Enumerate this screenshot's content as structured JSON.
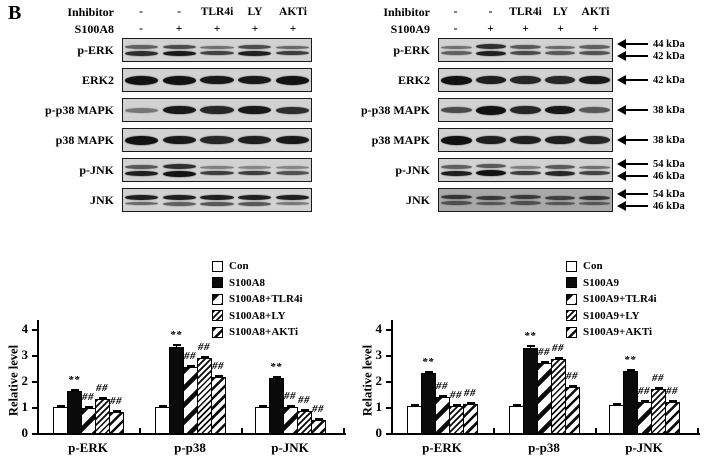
{
  "panel_label": "B",
  "colors": {
    "foreground": "#000000",
    "background": "#ffffff",
    "blot_membrane": "#d2d2d2",
    "blot_membrane_dark": "#a9a9a9"
  },
  "blot_panels": [
    {
      "id": "s100a8",
      "header_rows": [
        {
          "label": "Inhibitor",
          "values": [
            "-",
            "-",
            "TLR4i",
            "LY",
            "AKTi"
          ]
        },
        {
          "label": "S100A8",
          "values": [
            "-",
            "+",
            "+",
            "+",
            "+"
          ]
        }
      ],
      "rows": [
        {
          "label": "p-ERK",
          "band_rows": [
            [
              0.45,
              0.6,
              0.35,
              0.6,
              0.4
            ],
            [
              0.8,
              0.95,
              0.65,
              0.9,
              0.7
            ]
          ],
          "markers": []
        },
        {
          "label": "ERK2",
          "band_rows": [
            [
              1,
              1,
              0.95,
              0.95,
              1
            ]
          ],
          "markers": []
        },
        {
          "label": "p-p38 MAPK",
          "band_rows": [
            [
              0.3,
              0.95,
              0.85,
              0.95,
              0.8
            ]
          ],
          "markers": []
        },
        {
          "label": "p38 MAPK",
          "band_rows": [
            [
              1,
              0.95,
              0.85,
              0.9,
              0.95
            ]
          ],
          "markers": []
        },
        {
          "label": "p-JNK",
          "band_rows": [
            [
              0.5,
              0.8,
              0.25,
              0.2,
              0.2
            ],
            [
              0.9,
              1,
              0.7,
              0.7,
              0.55
            ]
          ],
          "markers": []
        },
        {
          "label": "JNK",
          "band_rows": [
            [
              0.9,
              0.9,
              0.9,
              0.9,
              0.9
            ],
            [
              0.4,
              0.45,
              0.5,
              0.5,
              0.3
            ]
          ],
          "markers": []
        }
      ]
    },
    {
      "id": "s100a9",
      "header_rows": [
        {
          "label": "Inhibitor",
          "values": [
            "-",
            "-",
            "TLR4i",
            "LY",
            "AKTi"
          ]
        },
        {
          "label": "S100A9",
          "values": [
            "-",
            "+",
            "+",
            "+",
            "+"
          ]
        }
      ],
      "rows": [
        {
          "label": "p-ERK",
          "band_rows": [
            [
              0.35,
              0.8,
              0.5,
              0.4,
              0.45
            ],
            [
              0.45,
              0.9,
              0.6,
              0.5,
              0.55
            ]
          ],
          "markers": [
            "44 kDa",
            "42 kDa"
          ]
        },
        {
          "label": "ERK2",
          "band_rows": [
            [
              1,
              0.9,
              0.85,
              0.85,
              0.95
            ]
          ],
          "markers": [
            "42 kDa"
          ]
        },
        {
          "label": "p-p38 MAPK",
          "band_rows": [
            [
              0.6,
              1,
              0.85,
              0.95,
              0.5
            ]
          ],
          "markers": [
            "38 kDa"
          ]
        },
        {
          "label": "p38 MAPK",
          "band_rows": [
            [
              1,
              0.9,
              0.9,
              0.9,
              0.85
            ]
          ],
          "markers": [
            "38 kDa"
          ]
        },
        {
          "label": "p-JNK",
          "band_rows": [
            [
              0.45,
              0.5,
              0.25,
              0.5,
              0.35
            ],
            [
              0.9,
              1,
              0.7,
              0.85,
              0.65
            ]
          ],
          "markers": [
            "54 kDa",
            "46 kDa"
          ]
        },
        {
          "label": "JNK",
          "band_rows": [
            [
              0.7,
              0.65,
              0.65,
              0.6,
              0.7
            ],
            [
              0.45,
              0.4,
              0.45,
              0.4,
              0.4
            ]
          ],
          "markers": [
            "54 kDa",
            "46 kDa"
          ],
          "bg": "#a9a9a9"
        }
      ]
    }
  ],
  "chart_data": [
    {
      "type": "bar",
      "title": "",
      "xlabel": "",
      "ylabel": "Relative level",
      "ylim": [
        0,
        4
      ],
      "yticks": [
        0,
        1,
        2,
        3,
        4
      ],
      "grid": false,
      "legend_position": "top-right",
      "categories": [
        "p-ERK",
        "p-p38",
        "p-JNK"
      ],
      "series": [
        {
          "name": "Con",
          "pattern": "plain",
          "values": [
            1.0,
            1.0,
            1.0
          ],
          "errors": [
            0.03,
            0.04,
            0.04
          ],
          "annotations": [
            "",
            "",
            ""
          ]
        },
        {
          "name": "S100A8",
          "pattern": "solid",
          "values": [
            1.6,
            3.3,
            2.1
          ],
          "errors": [
            0.06,
            0.1,
            0.08
          ],
          "annotations": [
            "**",
            "**",
            "**"
          ]
        },
        {
          "name": "S100A8+TLR4i",
          "pattern": "stripe",
          "values": [
            0.95,
            2.55,
            1.0
          ],
          "errors": [
            0.04,
            0.08,
            0.05
          ],
          "annotations": [
            "##",
            "##",
            "##"
          ]
        },
        {
          "name": "S100A8+LY",
          "pattern": "hatch-fine",
          "values": [
            1.3,
            2.9,
            0.85
          ],
          "errors": [
            0.05,
            0.08,
            0.04
          ],
          "annotations": [
            "##",
            "##",
            "##"
          ]
        },
        {
          "name": "S100A8+AKTi",
          "pattern": "hatch-med",
          "values": [
            0.8,
            2.15,
            0.5
          ],
          "errors": [
            0.04,
            0.07,
            0.04
          ],
          "annotations": [
            "##",
            "##",
            "##"
          ]
        }
      ]
    },
    {
      "type": "bar",
      "title": "",
      "xlabel": "",
      "ylabel": "Relative level",
      "ylim": [
        0,
        4
      ],
      "yticks": [
        0,
        1,
        2,
        3,
        4
      ],
      "grid": false,
      "legend_position": "top-right",
      "categories": [
        "p-ERK",
        "p-p38",
        "p-JNK"
      ],
      "series": [
        {
          "name": "Con",
          "pattern": "plain",
          "values": [
            1.05,
            1.05,
            1.08
          ],
          "errors": [
            0.04,
            0.05,
            0.05
          ],
          "annotations": [
            "",
            "",
            ""
          ]
        },
        {
          "name": "S100A9",
          "pattern": "solid",
          "values": [
            2.3,
            3.25,
            2.38
          ],
          "errors": [
            0.05,
            0.1,
            0.09
          ],
          "annotations": [
            "**",
            "**",
            "**"
          ]
        },
        {
          "name": "S100A9+TLR4i",
          "pattern": "stripe",
          "values": [
            1.4,
            2.7,
            1.2
          ],
          "errors": [
            0.05,
            0.09,
            0.05
          ],
          "annotations": [
            "##",
            "##",
            "##"
          ]
        },
        {
          "name": "S100A9+LY",
          "pattern": "hatch-fine",
          "values": [
            1.05,
            2.85,
            1.7
          ],
          "errors": [
            0.04,
            0.06,
            0.07
          ],
          "annotations": [
            "##",
            "##",
            "##"
          ]
        },
        {
          "name": "S100A9+AKTi",
          "pattern": "hatch-med",
          "values": [
            1.1,
            1.75,
            1.2
          ],
          "errors": [
            0.05,
            0.07,
            0.05
          ],
          "annotations": [
            "##",
            "##",
            "##"
          ]
        }
      ]
    }
  ]
}
